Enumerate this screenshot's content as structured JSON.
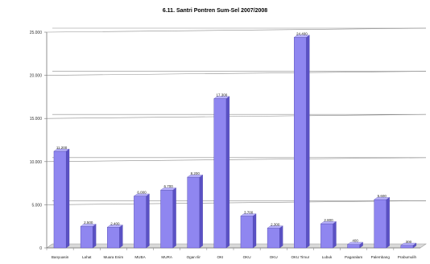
{
  "chart_data": {
    "type": "bar",
    "title": "6.11. Santri Pontren Sum-Sel 2007/2008",
    "xlabel": "",
    "ylabel": "",
    "ylim": [
      0,
      25000
    ],
    "yticks": [
      0,
      5000,
      10000,
      15000,
      20000,
      25000
    ],
    "ytick_labels": [
      "0",
      "5.000",
      "10.000",
      "15.000",
      "20.000",
      "25.000"
    ],
    "grid": true,
    "legend": "none",
    "bar_3d": true,
    "bar_color": "#8f86f0",
    "categories": [
      "Banyuasin",
      "Lahat",
      "Muara Enim",
      "MUBA",
      "MURA",
      "Ogan Ilir",
      "OKI",
      "OKU",
      "OKU",
      "OKU Timur",
      "Lubuk",
      "Pagaralam",
      "Palembang",
      "Prabumulih"
    ],
    "values": [
      11200,
      2500,
      2400,
      6000,
      6700,
      8200,
      17300,
      3700,
      2300,
      24400,
      2800,
      400,
      5600,
      300
    ],
    "value_labels": [
      "11.200",
      "2.500",
      "2.400",
      "6.000",
      "6.700",
      "8.200",
      "17.300",
      "3.700",
      "2.300",
      "24.400",
      "2.800",
      "400",
      "5.600",
      "300"
    ]
  }
}
